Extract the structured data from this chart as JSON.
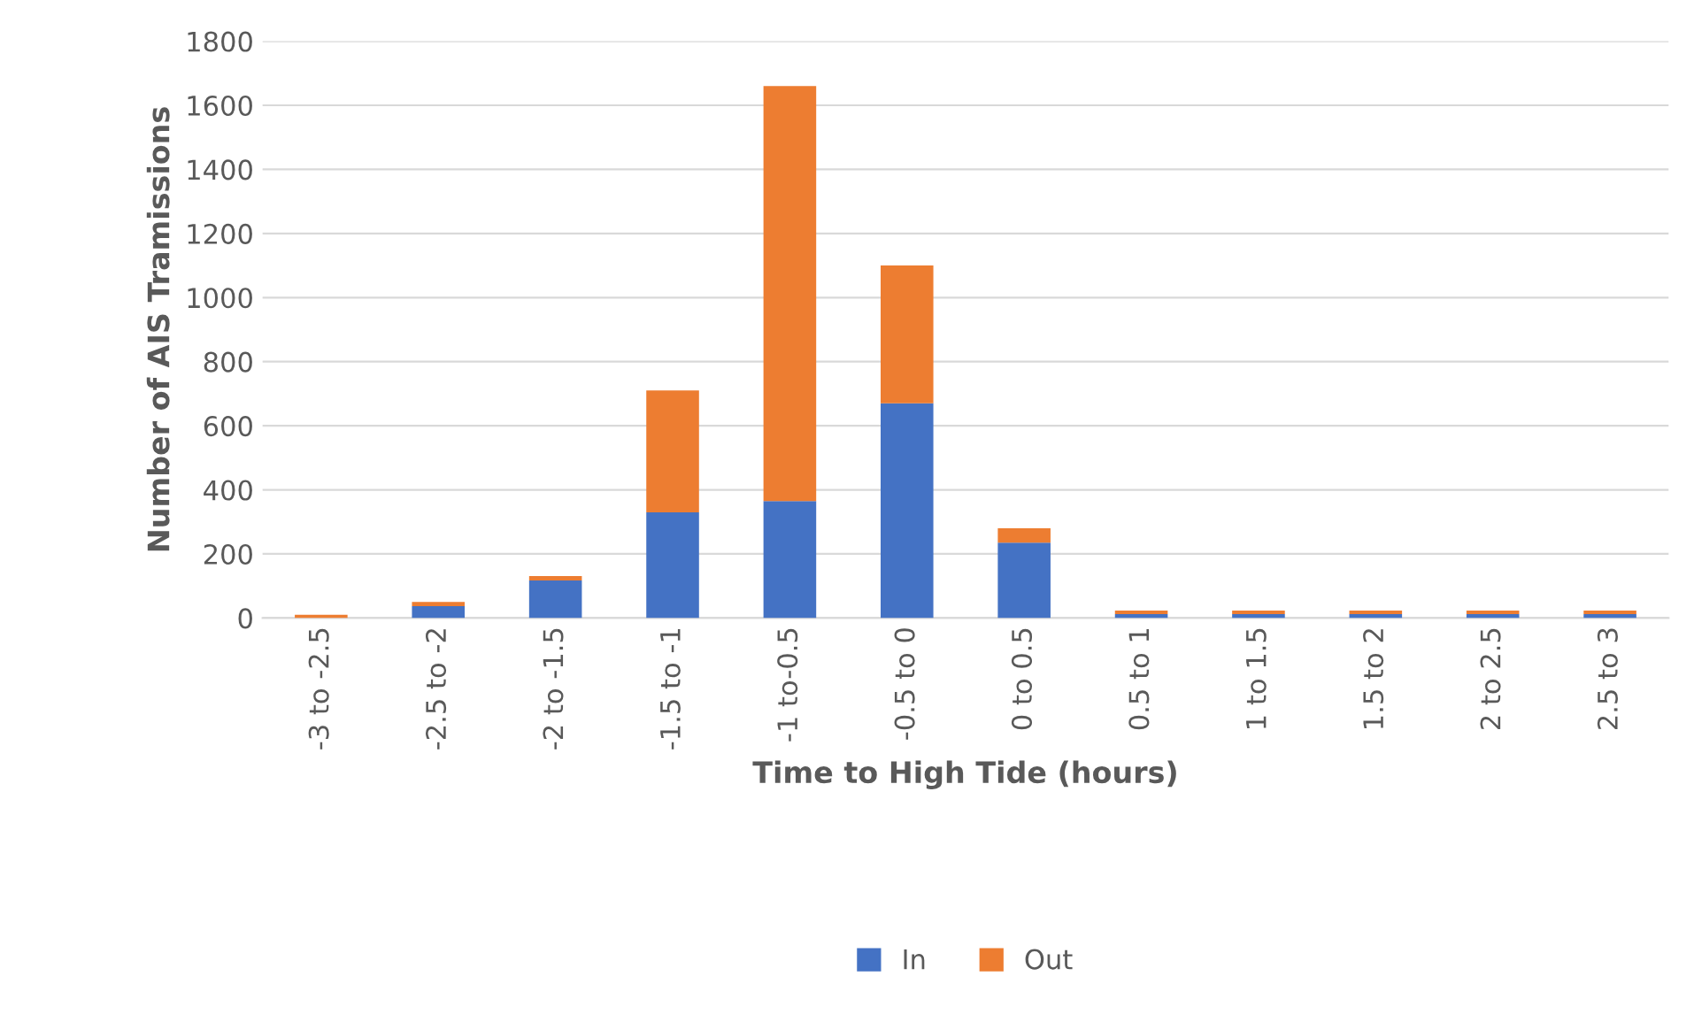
{
  "chart_data": {
    "type": "bar",
    "stacked": true,
    "xlabel": "Time to High Tide (hours)",
    "ylabel": "Number of AIS Tramissions",
    "categories": [
      "-3 to -2.5",
      "-2.5 to -2",
      "-2 to -1.5",
      "-1.5 to -1",
      "-1 to-0.5",
      "-0.5 to 0",
      "0 to 0.5",
      "0.5 to 1",
      "1 to 1.5",
      "1.5 to 2",
      "2 to 2.5",
      "2.5 to 3"
    ],
    "series": [
      {
        "name": "In",
        "color": "#4472c4",
        "values": [
          0,
          37,
          117,
          330,
          365,
          670,
          235,
          12,
          12,
          12,
          12,
          12
        ]
      },
      {
        "name": "Out",
        "color": "#ed7d31",
        "values": [
          10,
          13,
          14,
          380,
          1295,
          430,
          45,
          11,
          11,
          11,
          11,
          11
        ]
      }
    ],
    "ylim": [
      0,
      1800
    ],
    "yticks": [
      0,
      200,
      400,
      600,
      800,
      1000,
      1200,
      1400,
      1600,
      1800
    ],
    "grid": "y",
    "legend": "bottom"
  }
}
